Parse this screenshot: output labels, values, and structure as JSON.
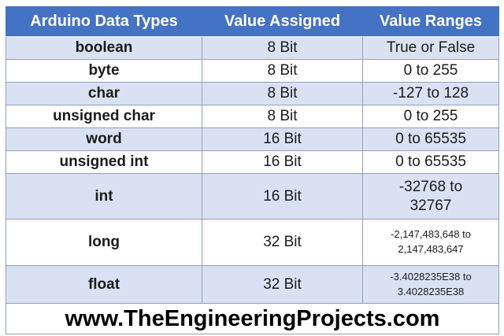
{
  "colors": {
    "header_bg": "#4472C4",
    "header_text": "#FFFFFF",
    "banded_row_bg": "#D9E2F3",
    "plain_row_bg": "#FFFFFF",
    "border": "#8EA0BE",
    "body_text": "#1B1B1B",
    "footer_text": "#000000"
  },
  "chart_data": {
    "type": "table",
    "columns": [
      "Arduino Data Types",
      "Value Assigned",
      "Value Ranges"
    ],
    "rows": [
      [
        "boolean",
        "8 Bit",
        "True or False"
      ],
      [
        "byte",
        "8 Bit",
        "0 to 255"
      ],
      [
        "char",
        "8 Bit",
        "-127 to 128"
      ],
      [
        "unsigned char",
        "8 Bit",
        "0 to 255"
      ],
      [
        "word",
        "16 Bit",
        "0 to 65535"
      ],
      [
        "unsigned int",
        "16 Bit",
        "0 to 65535"
      ],
      [
        "int",
        "16 Bit",
        "-32768 to\n32767"
      ],
      [
        "long",
        "32 Bit",
        "-2,147,483,648 to\n2,147,483,647"
      ],
      [
        "float",
        "32 Bit",
        "-3.4028235E38 to\n3.4028235E38"
      ]
    ],
    "caption": "www.TheEngineeringProjects.com"
  }
}
